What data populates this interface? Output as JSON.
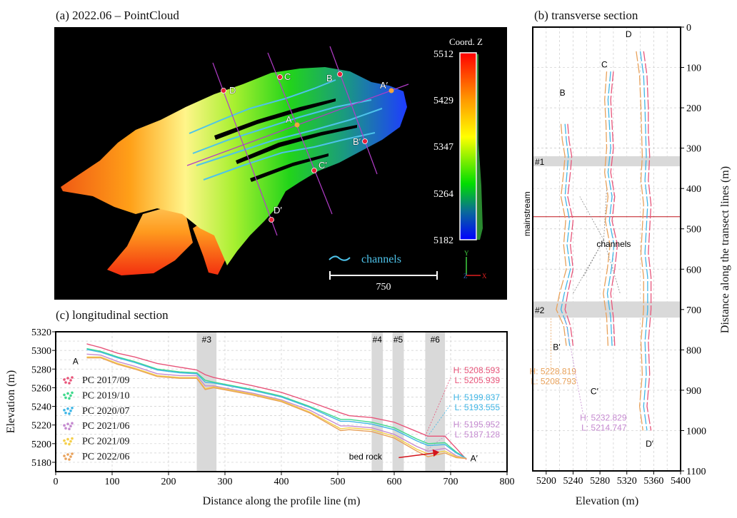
{
  "panel_a": {
    "title": "(a) 2022.06 – PointCloud",
    "colorbar": {
      "title": "Coord. Z",
      "ticks": [
        "5512",
        "5429",
        "5347",
        "5264",
        "5182"
      ],
      "colors": [
        "#ff0000",
        "#ff9900",
        "#ffff00",
        "#00dd00",
        "#0000ff"
      ]
    },
    "transect_labels": {
      "A": "A",
      "A_end": "A′",
      "B": "B",
      "B_end": "B′",
      "C": "C",
      "C_end": "C′",
      "D": "D",
      "D_end": "D′"
    },
    "legend_channels": "channels",
    "scale_bar": "750",
    "axes": {
      "x": "X",
      "y": "Y",
      "z": "Z"
    },
    "colors": {
      "channels": "#4ec3ea",
      "transect": "#b23cc8",
      "marker": "#e8213a",
      "marker_a": "#f3a53a"
    }
  },
  "chart_data": [
    {
      "id": "transverse",
      "type": "line",
      "title": "(b) transverse section",
      "xlabel": "Elevation (m)",
      "ylabel": "Distance along the transect lines (m)",
      "xlim": [
        5180,
        5400
      ],
      "ylim": [
        1100,
        0
      ],
      "xticks": [
        "5200",
        "5240",
        "5280",
        "5320",
        "5360",
        "5400"
      ],
      "yticks": [
        "0",
        "100",
        "200",
        "300",
        "400",
        "500",
        "600",
        "700",
        "800",
        "900",
        "1000",
        "1100"
      ],
      "grid": true,
      "bands": [
        {
          "label": "#1",
          "from": 320,
          "to": 345
        },
        {
          "label": "#2",
          "from": 680,
          "to": 720
        }
      ],
      "mainstream": {
        "label": "mainstream",
        "distance": 470
      },
      "channels_label": "channels",
      "transects": [
        {
          "start": "B",
          "end": "B′",
          "distance": [
            240,
            280,
            320,
            360,
            420,
            480,
            540,
            600,
            660,
            700,
            740,
            790
          ],
          "series": [
            {
              "name": "PC 2017/09",
              "elevation": [
                5232,
                5234,
                5238,
                5236,
                5232,
                5240,
                5236,
                5240,
                5232,
                5228,
                5236,
                5240
              ]
            },
            {
              "name": "PC 2020/07",
              "elevation": [
                5228,
                5230,
                5233,
                5231,
                5228,
                5235,
                5231,
                5236,
                5227,
                5222,
                5231,
                5235
              ]
            },
            {
              "name": "PC 2022/06",
              "elevation": [
                5222,
                5224,
                5228,
                5226,
                5222,
                5229,
                5226,
                5230,
                5220,
                5215,
                5226,
                5230
              ]
            }
          ]
        },
        {
          "start": "C",
          "end": "C′",
          "distance": [
            110,
            180,
            240,
            300,
            360,
            420,
            480,
            540,
            600,
            660,
            720,
            790
          ],
          "series": [
            {
              "name": "PC 2017/09",
              "elevation": [
                5300,
                5296,
                5298,
                5300,
                5296,
                5302,
                5298,
                5306,
                5302,
                5296,
                5300,
                5302
              ]
            },
            {
              "name": "PC 2020/07",
              "elevation": [
                5296,
                5292,
                5294,
                5296,
                5292,
                5298,
                5294,
                5301,
                5297,
                5291,
                5296,
                5298
              ]
            },
            {
              "name": "PC 2022/06",
              "elevation": [
                5290,
                5287,
                5289,
                5290,
                5287,
                5292,
                5288,
                5295,
                5291,
                5285,
                5290,
                5292
              ]
            }
          ]
        },
        {
          "start": "D",
          "end": "D′",
          "distance": [
            60,
            120,
            200,
            260,
            320,
            380,
            440,
            500,
            560,
            620,
            700,
            780,
            860,
            940,
            1000
          ],
          "series": [
            {
              "name": "PC 2017/09",
              "elevation": [
                5345,
                5350,
                5352,
                5352,
                5354,
                5352,
                5356,
                5354,
                5352,
                5356,
                5356,
                5352,
                5354,
                5350,
                5356
              ]
            },
            {
              "name": "PC 2020/07",
              "elevation": [
                5340,
                5345,
                5347,
                5348,
                5349,
                5347,
                5351,
                5349,
                5347,
                5351,
                5351,
                5347,
                5349,
                5345,
                5350
              ]
            },
            {
              "name": "PC 2022/06",
              "elevation": [
                5334,
                5339,
                5341,
                5342,
                5343,
                5341,
                5345,
                5343,
                5341,
                5345,
                5345,
                5341,
                5343,
                5339,
                5344
              ]
            }
          ]
        }
      ],
      "annotations": [
        {
          "h": "H: 5228.819",
          "l": "L: 5208.793",
          "color": "#e8a15a"
        },
        {
          "h": "H: 5232.829",
          "l": "L: 5214.747",
          "color": "#c58ad0"
        }
      ]
    },
    {
      "id": "longitudinal",
      "type": "line",
      "title": "(c) longitudinal section",
      "xlabel": "Distance along the profile line (m)",
      "ylabel": "Elevation (m)",
      "xlim": [
        0,
        800
      ],
      "ylim": [
        5170,
        5320
      ],
      "xticks": [
        "0",
        "100",
        "200",
        "300",
        "400",
        "500",
        "600",
        "700",
        "800"
      ],
      "yticks": [
        "5180",
        "5200",
        "5220",
        "5240",
        "5260",
        "5280",
        "5300",
        "5320"
      ],
      "grid": true,
      "legend_position": "left",
      "start_label": "A",
      "end_label": "A′",
      "bands": [
        {
          "label": "#3",
          "from": 250,
          "to": 285
        },
        {
          "label": "#4",
          "from": 560,
          "to": 580
        },
        {
          "label": "#5",
          "from": 597,
          "to": 617
        },
        {
          "label": "#6",
          "from": 655,
          "to": 690
        }
      ],
      "bed_rock_label": "bed rock",
      "x": [
        55,
        80,
        110,
        140,
        180,
        220,
        250,
        265,
        280,
        350,
        400,
        450,
        505,
        520,
        560,
        600,
        640,
        660,
        690,
        710,
        728
      ],
      "series": [
        {
          "name": "PC 2017/09",
          "color": "#e8557a",
          "values": [
            5307,
            5303,
            5297,
            5293,
            5286,
            5282,
            5279,
            5274,
            5271,
            5262,
            5255,
            5245,
            5233,
            5230,
            5228,
            5223,
            5213,
            5208,
            5208,
            5195,
            5183
          ]
        },
        {
          "name": "PC 2019/10",
          "color": "#3fd98c",
          "values": [
            5302,
            5299,
            5293,
            5288,
            5280,
            5277,
            5276,
            5268,
            5266,
            5258,
            5251,
            5240,
            5226,
            5226,
            5223,
            5217,
            5205,
            5200,
            5201,
            5191,
            5184
          ]
        },
        {
          "name": "PC 2020/07",
          "color": "#3fb6e6",
          "values": [
            5301,
            5298,
            5292,
            5287,
            5279,
            5276,
            5275,
            5266,
            5265,
            5257,
            5250,
            5239,
            5224,
            5224,
            5221,
            5215,
            5203,
            5198,
            5199,
            5190,
            5184
          ]
        },
        {
          "name": "PC 2021/06",
          "color": "#c58ad0",
          "values": [
            5296,
            5295,
            5288,
            5283,
            5275,
            5273,
            5273,
            5262,
            5262,
            5254,
            5247,
            5236,
            5219,
            5219,
            5217,
            5210,
            5197,
            5192,
            5195,
            5187,
            5184
          ]
        },
        {
          "name": "PC 2021/09",
          "color": "#f5cf4a",
          "values": [
            5293,
            5293,
            5286,
            5281,
            5273,
            5271,
            5271,
            5259,
            5261,
            5253,
            5246,
            5234,
            5216,
            5217,
            5215,
            5208,
            5194,
            5189,
            5192,
            5186,
            5184
          ]
        },
        {
          "name": "PC 2022/06",
          "color": "#e8a15a",
          "values": [
            5292,
            5292,
            5285,
            5280,
            5272,
            5270,
            5270,
            5258,
            5260,
            5252,
            5245,
            5233,
            5214,
            5215,
            5213,
            5206,
            5192,
            5186,
            5190,
            5185,
            5184
          ]
        }
      ],
      "annotations": [
        {
          "h": "H: 5208.593",
          "l": "L: 5205.939",
          "color": "#e8557a"
        },
        {
          "h": "H: 5199.837",
          "l": "L: 5193.555",
          "color": "#3fb6e6"
        },
        {
          "h": "H: 5195.952",
          "l": "L: 5187.128",
          "color": "#c58ad0"
        }
      ]
    }
  ]
}
